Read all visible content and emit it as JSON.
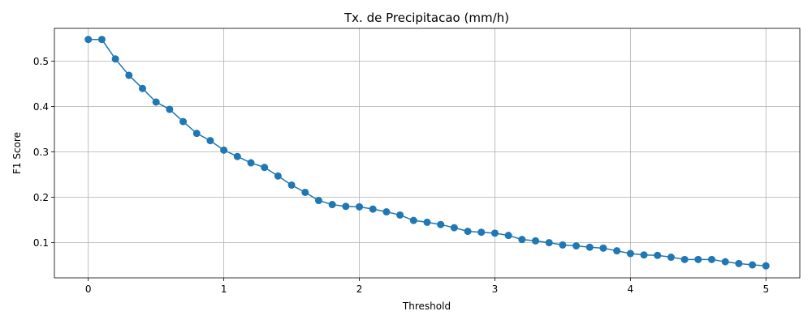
{
  "chart_data": {
    "type": "line",
    "title": "Tx. de Precipitacao (mm/h)",
    "xlabel": "Threshold",
    "ylabel": "F1 Score",
    "xlim": [
      -0.25,
      5.25
    ],
    "ylim": [
      0.0225,
      0.5725
    ],
    "xticks": [
      0,
      1,
      2,
      3,
      4,
      5
    ],
    "yticks": [
      0.1,
      0.2,
      0.3,
      0.4,
      0.5
    ],
    "grid": true,
    "marker": "circle",
    "color": "#1f77b4",
    "series": [
      {
        "x": [
          0.0,
          0.1,
          0.2,
          0.3,
          0.4,
          0.5,
          0.6,
          0.7,
          0.8,
          0.9,
          1.0,
          1.1,
          1.2,
          1.3,
          1.4,
          1.5,
          1.6,
          1.7,
          1.8,
          1.9,
          2.0,
          2.1,
          2.2,
          2.3,
          2.4,
          2.5,
          2.6,
          2.7,
          2.8,
          2.9,
          3.0,
          3.1,
          3.2,
          3.3,
          3.4,
          3.5,
          3.6,
          3.7,
          3.8,
          3.9,
          4.0,
          4.1,
          4.2,
          4.3,
          4.4,
          4.5,
          4.6,
          4.7,
          4.8,
          4.9,
          5.0
        ],
        "y": [
          0.548,
          0.548,
          0.505,
          0.469,
          0.44,
          0.41,
          0.394,
          0.367,
          0.341,
          0.325,
          0.304,
          0.29,
          0.276,
          0.266,
          0.247,
          0.227,
          0.211,
          0.193,
          0.184,
          0.18,
          0.179,
          0.174,
          0.168,
          0.161,
          0.149,
          0.145,
          0.14,
          0.133,
          0.125,
          0.123,
          0.121,
          0.116,
          0.107,
          0.104,
          0.1,
          0.095,
          0.093,
          0.09,
          0.088,
          0.082,
          0.076,
          0.073,
          0.072,
          0.068,
          0.063,
          0.063,
          0.063,
          0.058,
          0.054,
          0.051,
          0.049
        ]
      }
    ]
  }
}
